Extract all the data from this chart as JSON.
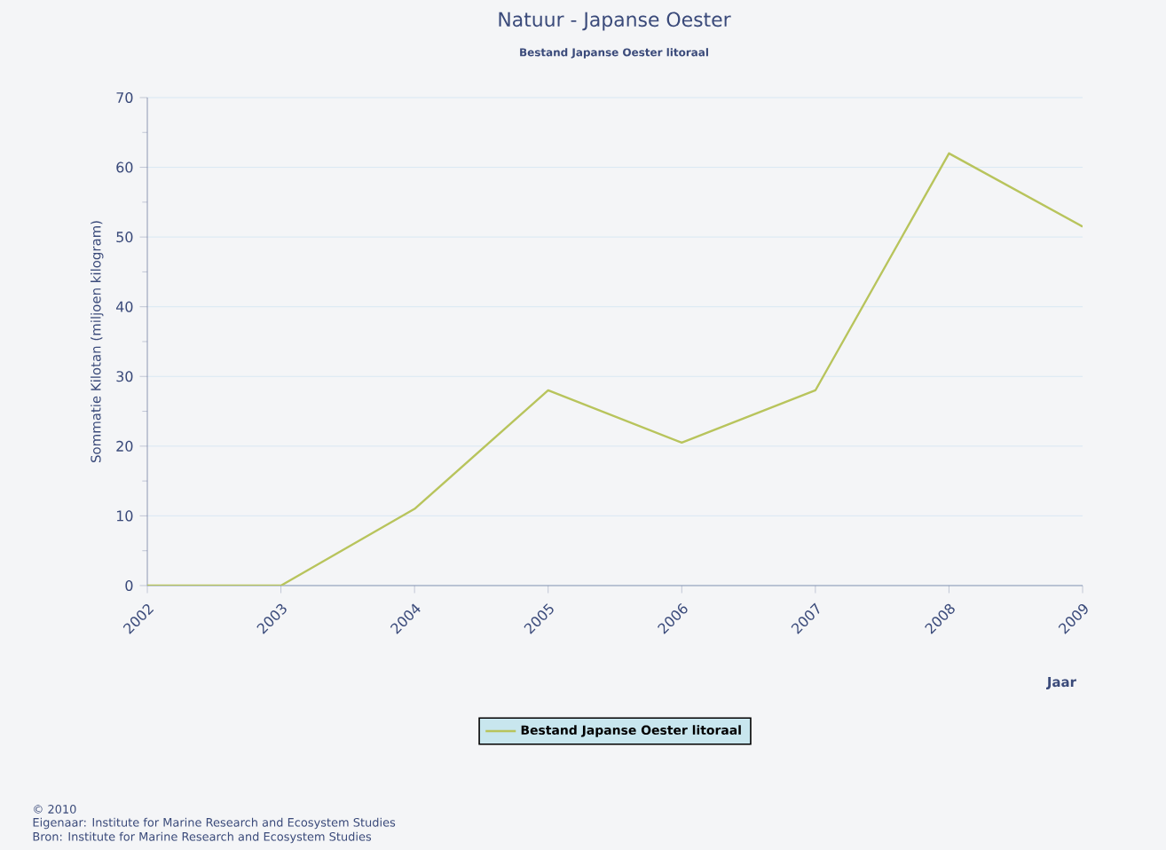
{
  "chart_data": {
    "type": "line",
    "title": "Natuur - Japanse Oester",
    "subtitle": "Bestand Japanse Oester litoraal",
    "xlabel": "Jaar",
    "ylabel": "Sommatie Kilotan (miljoen kilogram)",
    "x": [
      2002,
      2003,
      2004,
      2005,
      2006,
      2007,
      2008,
      2009
    ],
    "series": [
      {
        "name": "Bestand Japanse Oester litoraal",
        "color": "#b8c45c",
        "values": [
          0,
          0,
          11,
          28,
          20.5,
          28,
          62,
          51.5
        ]
      }
    ],
    "xlim": [
      2002,
      2009
    ],
    "xticks": [
      2002,
      2003,
      2004,
      2005,
      2006,
      2007,
      2008,
      2009
    ],
    "ylim": [
      0,
      70
    ],
    "yticks": [
      0,
      10,
      20,
      30,
      40,
      50,
      60,
      70
    ],
    "grid": "y",
    "legend": "bottom",
    "marker": "none",
    "line_style": "solid",
    "annotations": [
      "© 2010",
      "Eigenaar: Institute for Marine Research and Ecosystem Studies",
      "Bron: Institute for Marine Research and Ecosystem Studies"
    ]
  }
}
